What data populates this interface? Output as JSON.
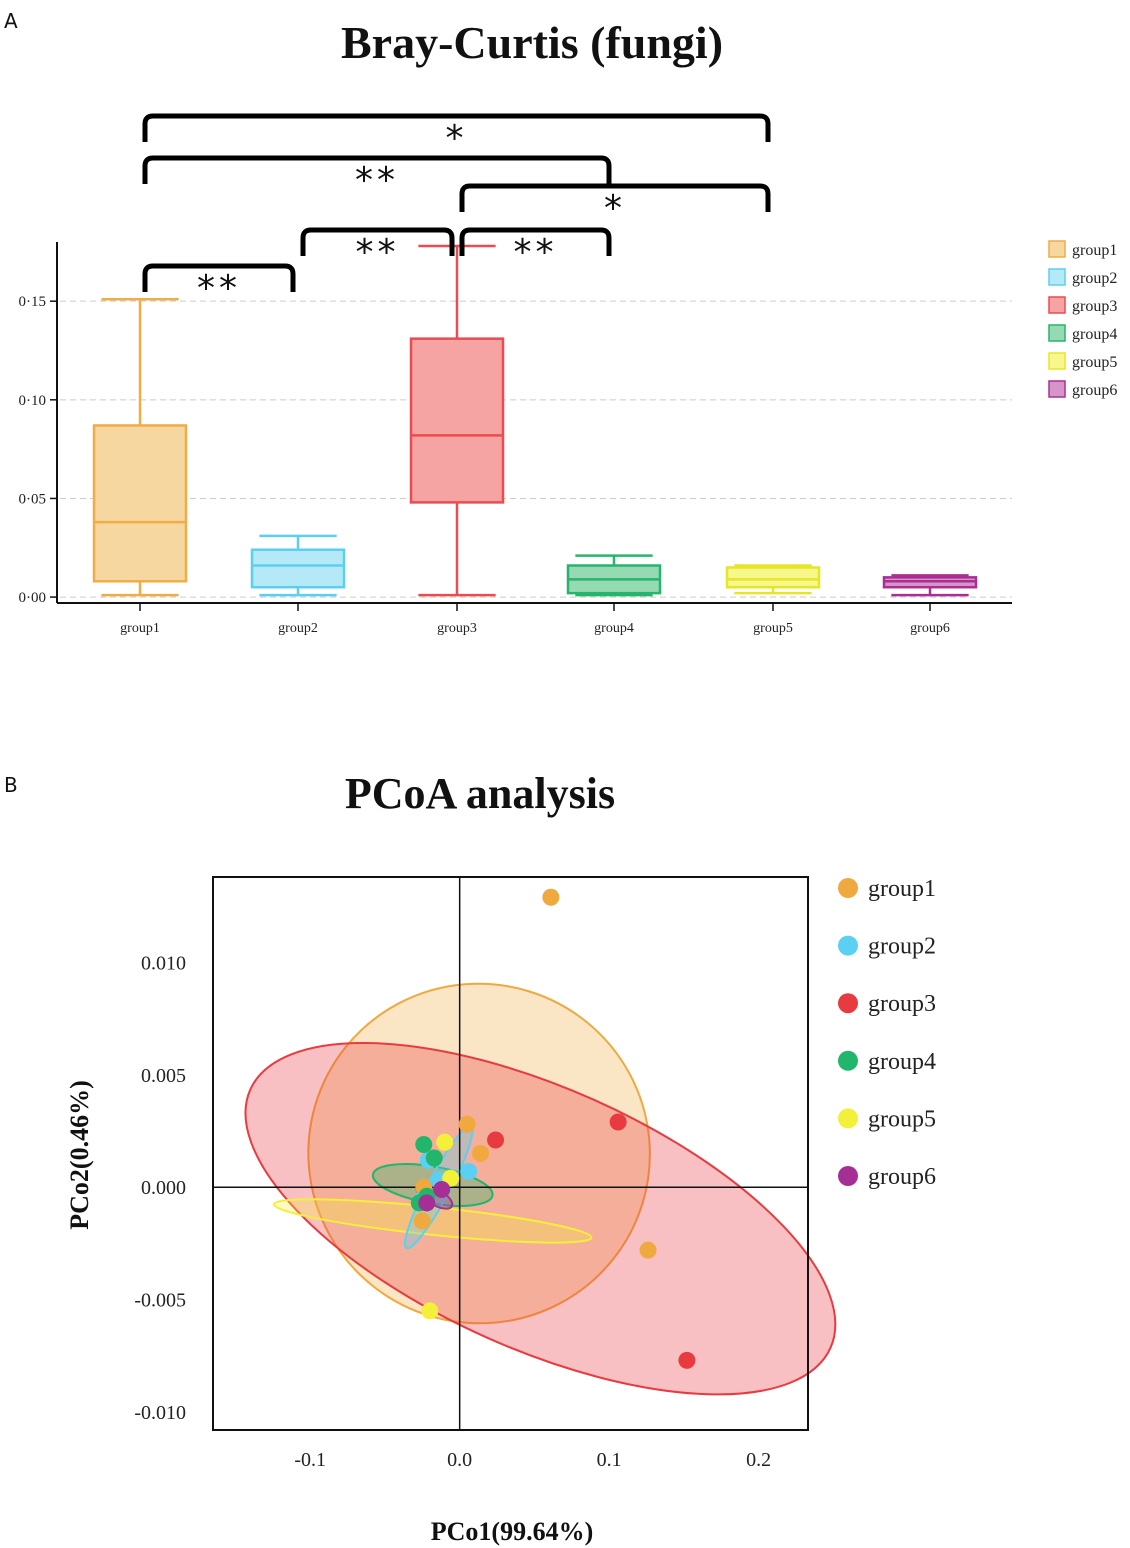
{
  "figure": {
    "panel_a_letter": "A",
    "panel_b_letter": "B"
  },
  "chart_data": [
    {
      "type": "box",
      "title": "Bray-Curtis (fungi)",
      "xlabel": "",
      "ylabel": "",
      "ylim": [
        -0.003,
        0.18
      ],
      "y_ticks": [
        0.0,
        0.05,
        0.1,
        0.15
      ],
      "y_tick_labels": [
        "0·00",
        "0·05",
        "0·10",
        "0·15"
      ],
      "grid": "horizontal dashed",
      "legend_position": "right",
      "categories": [
        "group1",
        "group2",
        "group3",
        "group4",
        "group5",
        "group6"
      ],
      "series": [
        {
          "name": "group1",
          "min": 0.001,
          "q1": 0.008,
          "median": 0.038,
          "q3": 0.087,
          "max": 0.151,
          "color": "#F0AC46",
          "fill": "#F6D7A0"
        },
        {
          "name": "group2",
          "min": 0.001,
          "q1": 0.005,
          "median": 0.016,
          "q3": 0.024,
          "max": 0.031,
          "color": "#5BCFEE",
          "fill": "#B5E9F8"
        },
        {
          "name": "group3",
          "min": 0.001,
          "q1": 0.048,
          "median": 0.082,
          "q3": 0.131,
          "max": 0.178,
          "color": "#EC4B50",
          "fill": "#F5A3A3"
        },
        {
          "name": "group4",
          "min": 0.001,
          "q1": 0.002,
          "median": 0.009,
          "q3": 0.016,
          "max": 0.021,
          "color": "#27B46C",
          "fill": "#95DAB2"
        },
        {
          "name": "group5",
          "min": 0.002,
          "q1": 0.005,
          "median": 0.009,
          "q3": 0.015,
          "max": 0.016,
          "color": "#E6E628",
          "fill": "#F7F78C"
        },
        {
          "name": "group6",
          "min": 0.001,
          "q1": 0.005,
          "median": 0.008,
          "q3": 0.01,
          "max": 0.011,
          "color": "#AB2F93",
          "fill": "#D695C9"
        }
      ],
      "significance": [
        {
          "from": "group1",
          "to": "group2",
          "label": "**"
        },
        {
          "from": "group2",
          "to": "group3",
          "label": "**"
        },
        {
          "from": "group3",
          "to": "group4",
          "label": "**"
        },
        {
          "from": "group3",
          "to": "group5",
          "label": "*"
        },
        {
          "from": "group1",
          "to": "group4",
          "label": "**"
        },
        {
          "from": "group1",
          "to": "group5",
          "label": "*"
        }
      ]
    },
    {
      "type": "scatter",
      "title": "PCoA analysis",
      "xlabel": "PCo1(99.64%)",
      "ylabel": "PCo2(0.46%)",
      "xlim": [
        -0.165,
        0.233
      ],
      "ylim": [
        -0.0108,
        0.0138
      ],
      "x_ticks": [
        -0.1,
        0.0,
        0.1,
        0.2
      ],
      "x_tick_labels": [
        "-0.1",
        "0.0",
        "0.1",
        "0.2"
      ],
      "y_ticks": [
        -0.01,
        -0.005,
        0.0,
        0.005,
        0.01
      ],
      "y_tick_labels": [
        "-0.010",
        "-0.005",
        "0.000",
        "0.005",
        "0.010"
      ],
      "reference_lines": {
        "x": 0,
        "y": 0
      },
      "legend_position": "right",
      "series": [
        {
          "name": "group1",
          "color": "#EFA93F",
          "points": [
            [
              0.061,
              0.0129
            ],
            [
              0.005,
              0.0028
            ],
            [
              0.014,
              0.0015
            ],
            [
              -0.024,
              0.0
            ],
            [
              -0.025,
              -0.0015
            ],
            [
              0.126,
              -0.0028
            ]
          ],
          "ellipse": {
            "cx": 0.013,
            "cy": 0.0015,
            "rx": 0.0076,
            "ry": 0.1135,
            "angle_deg": 0.9
          }
        },
        {
          "name": "group2",
          "color": "#5BD0F2",
          "points": [
            [
              -0.021,
              0.0012
            ],
            [
              0.006,
              0.0007
            ],
            [
              -0.026,
              -0.0006
            ],
            [
              -0.014,
              0.0003
            ]
          ],
          "ellipse": {
            "cx": -0.014,
            "cy": 0.0,
            "rx": 0.0005,
            "ry": 0.046,
            "angle_deg": -0.1
          }
        },
        {
          "name": "group3",
          "color": "#E83B40",
          "points": [
            [
              0.106,
              0.0029
            ],
            [
              0.024,
              0.0021
            ],
            [
              0.152,
              -0.0077
            ]
          ],
          "ellipse": {
            "cx": 0.054,
            "cy": -0.0014,
            "rx": 0.0058,
            "ry": 0.2124,
            "angle_deg": 0.0
          }
        },
        {
          "name": "group4",
          "color": "#21B66A",
          "points": [
            [
              -0.024,
              0.0019
            ],
            [
              -0.017,
              0.0013
            ],
            [
              -0.022,
              -0.0004
            ],
            [
              -0.027,
              -0.0007
            ]
          ],
          "ellipse": {
            "cx": -0.018,
            "cy": 0.0001,
            "rx": 0.0027,
            "ry": 0.0123,
            "angle_deg": 0.0
          }
        },
        {
          "name": "group5",
          "color": "#F4F03A",
          "points": [
            [
              -0.006,
              0.0004
            ],
            [
              -0.02,
              -0.0055
            ],
            [
              -0.01,
              0.002
            ]
          ],
          "ellipse": {
            "cx": -0.018,
            "cy": -0.0015,
            "rx": 0.0071,
            "ry": 0.0093,
            "angle_deg": 0.0
          }
        },
        {
          "name": "group6",
          "color": "#A52F95",
          "points": [
            [
              -0.012,
              -0.0001
            ],
            [
              -0.022,
              -0.0007
            ]
          ],
          "ellipse": {
            "cx": -0.017,
            "cy": -0.0004,
            "rx": 0.0009,
            "ry": 0.0055,
            "angle_deg": 0.0
          }
        }
      ]
    }
  ]
}
